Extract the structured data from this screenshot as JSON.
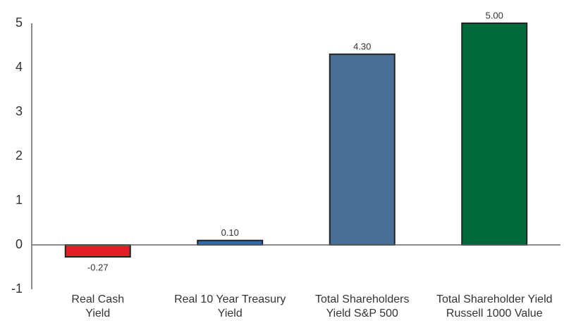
{
  "chart_data": {
    "type": "bar",
    "categories": [
      [
        "Real Cash",
        "Yield"
      ],
      [
        "Real 10 Year Treasury",
        "Yield"
      ],
      [
        "Total Shareholders",
        "Yield S&P 500"
      ],
      [
        "Total Shareholder Yield",
        "Russell 1000 Value"
      ]
    ],
    "values": [
      -0.27,
      0.1,
      4.3,
      5
    ],
    "value_labels": [
      "-0.27",
      "0.10",
      "4.30",
      "5.00"
    ],
    "colors": [
      "#e31e24",
      "#2e6aad",
      "#4a6f96",
      "#006a3a"
    ],
    "ylim": [
      -1,
      5
    ],
    "yticks": [
      -1,
      0,
      1,
      2,
      3,
      4,
      5
    ],
    "grid": false
  }
}
